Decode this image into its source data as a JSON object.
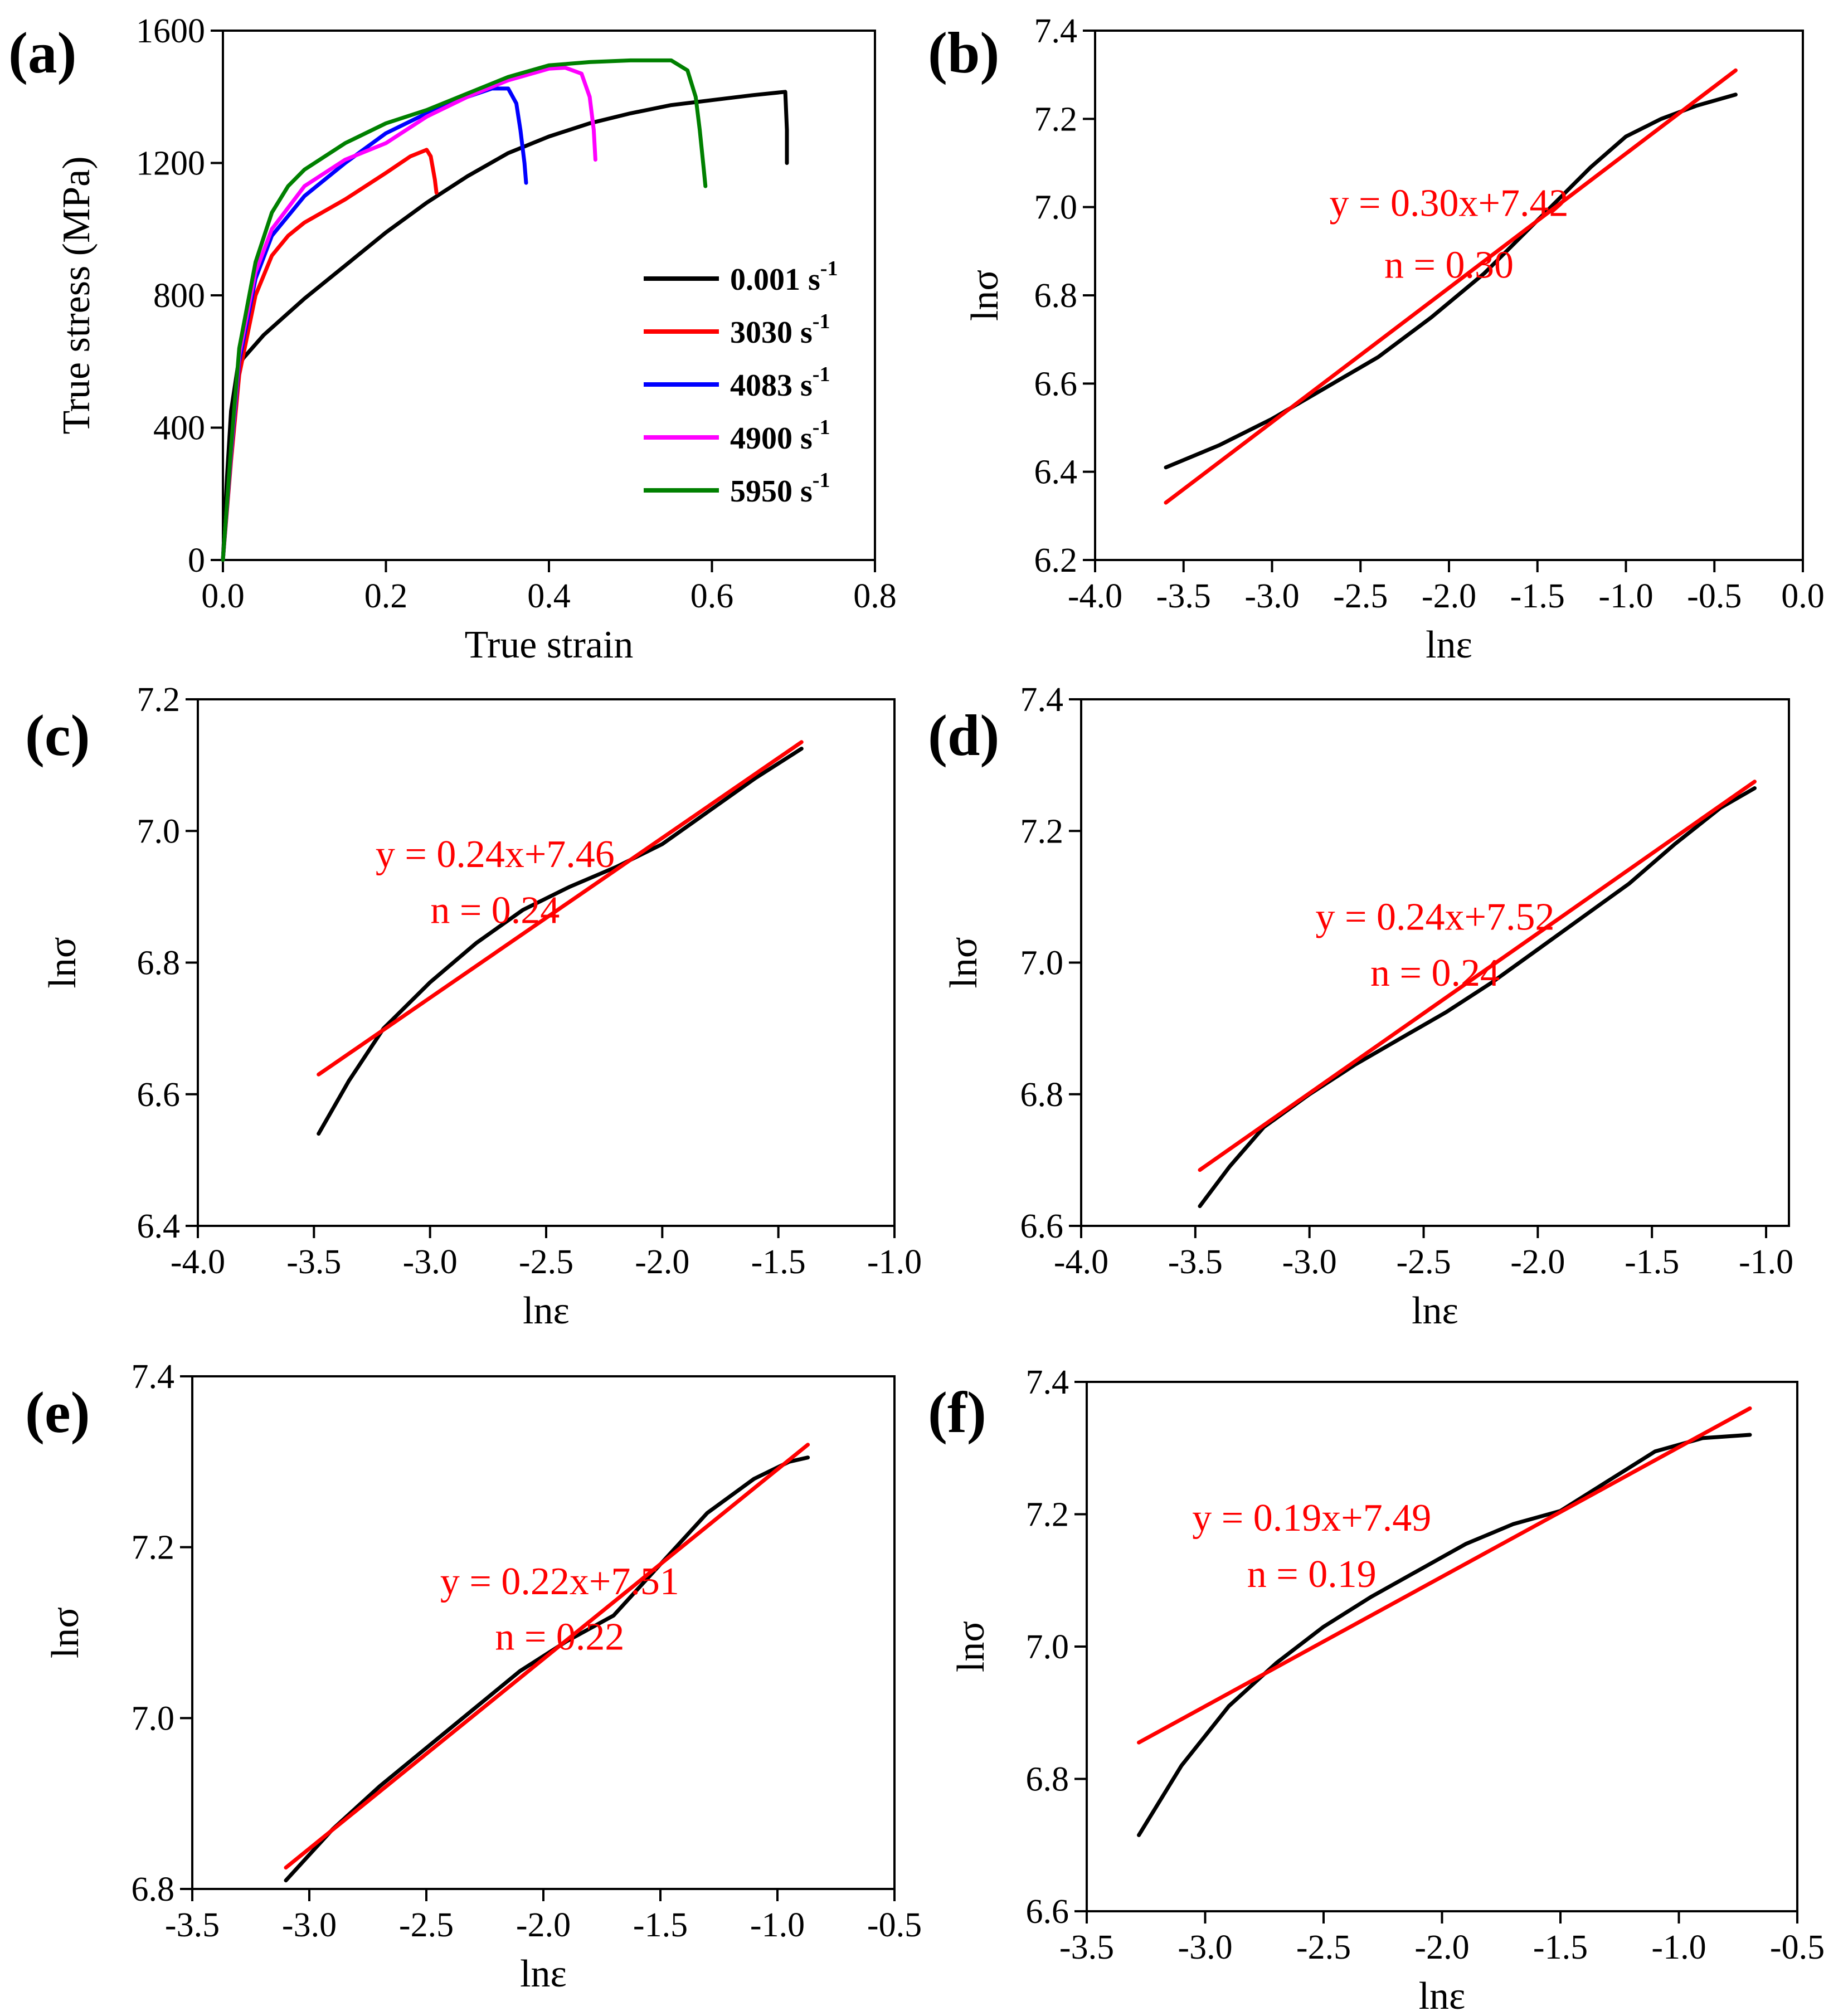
{
  "chart_data": [
    {
      "id": "a",
      "type": "line",
      "panel_label": "(a)",
      "xlabel": "True strain",
      "ylabel": "True stress (MPa)",
      "xlim": [
        0,
        0.8
      ],
      "ylim": [
        0,
        1600
      ],
      "xticks": [
        0.0,
        0.2,
        0.4,
        0.6,
        0.8
      ],
      "yticks": [
        0,
        400,
        800,
        1200,
        1600
      ],
      "xtick_labels": [
        "0.0",
        "0.2",
        "0.4",
        "0.6",
        "0.8"
      ],
      "ytick_labels": [
        "0",
        "400",
        "800",
        "1200",
        "1600"
      ],
      "legend_position": "middle-right",
      "series": [
        {
          "name": "0.001 s-1",
          "label": "0.001 s",
          "sup": "-1",
          "color": "#000000",
          "x": [
            0,
            0.005,
            0.01,
            0.018,
            0.025,
            0.05,
            0.1,
            0.15,
            0.2,
            0.25,
            0.3,
            0.35,
            0.4,
            0.45,
            0.5,
            0.55,
            0.6,
            0.65,
            0.69,
            0.692,
            0.692
          ],
          "y": [
            0,
            250,
            450,
            580,
            610,
            680,
            790,
            890,
            990,
            1080,
            1160,
            1230,
            1280,
            1320,
            1350,
            1375,
            1390,
            1405,
            1415,
            1300,
            1200
          ]
        },
        {
          "name": "3030 s-1",
          "label": "3030 s",
          "sup": "-1",
          "color": "#ff0000",
          "x": [
            0,
            0.01,
            0.02,
            0.04,
            0.06,
            0.08,
            0.1,
            0.15,
            0.2,
            0.23,
            0.25,
            0.255,
            0.26,
            0.262
          ],
          "y": [
            0,
            300,
            560,
            800,
            920,
            980,
            1020,
            1090,
            1170,
            1220,
            1240,
            1220,
            1150,
            1110
          ]
        },
        {
          "name": "4083 s-1",
          "label": "4083 s",
          "sup": "-1",
          "color": "#0000ff",
          "x": [
            0,
            0.01,
            0.02,
            0.04,
            0.06,
            0.1,
            0.15,
            0.2,
            0.25,
            0.3,
            0.33,
            0.35,
            0.36,
            0.365,
            0.37,
            0.372
          ],
          "y": [
            0,
            320,
            600,
            850,
            980,
            1100,
            1200,
            1290,
            1350,
            1400,
            1425,
            1425,
            1380,
            1300,
            1200,
            1140
          ]
        },
        {
          "name": "4900 s-1",
          "label": "4900 s",
          "sup": "-1",
          "color": "#ff00ff",
          "x": [
            0,
            0.01,
            0.02,
            0.04,
            0.06,
            0.1,
            0.15,
            0.2,
            0.25,
            0.3,
            0.35,
            0.4,
            0.42,
            0.44,
            0.45,
            0.455,
            0.457
          ],
          "y": [
            0,
            330,
            620,
            870,
            1000,
            1130,
            1210,
            1260,
            1340,
            1400,
            1450,
            1485,
            1488,
            1470,
            1400,
            1300,
            1210
          ]
        },
        {
          "name": "5950 s-1",
          "label": "5950 s",
          "sup": "-1",
          "color": "#008000",
          "x": [
            0,
            0.01,
            0.02,
            0.04,
            0.06,
            0.08,
            0.1,
            0.15,
            0.2,
            0.25,
            0.3,
            0.35,
            0.4,
            0.45,
            0.5,
            0.55,
            0.57,
            0.58,
            0.585,
            0.59,
            0.592
          ],
          "y": [
            0,
            340,
            640,
            900,
            1050,
            1130,
            1180,
            1260,
            1320,
            1360,
            1410,
            1460,
            1495,
            1505,
            1510,
            1510,
            1480,
            1400,
            1300,
            1180,
            1130
          ]
        }
      ]
    },
    {
      "id": "b",
      "type": "line",
      "panel_label": "(b)",
      "xlabel": "lnε",
      "ylabel": "lnσ",
      "xlim": [
        -4.0,
        0.0
      ],
      "ylim": [
        6.2,
        7.4
      ],
      "xticks": [
        -4.0,
        -3.5,
        -3.0,
        -2.5,
        -2.0,
        -1.5,
        -1.0,
        -0.5,
        0.0
      ],
      "yticks": [
        6.2,
        6.4,
        6.6,
        6.8,
        7.0,
        7.2,
        7.4
      ],
      "xtick_labels": [
        "-4.0",
        "-3.5",
        "-3.0",
        "-2.5",
        "-2.0",
        "-1.5",
        "-1.0",
        "-0.5",
        "0.0"
      ],
      "ytick_labels": [
        "6.2",
        "6.4",
        "6.6",
        "6.8",
        "7.0",
        "7.2",
        "7.4"
      ],
      "series": [
        {
          "name": "data",
          "color": "#000000",
          "x": [
            -3.6,
            -3.3,
            -3.0,
            -2.7,
            -2.4,
            -2.1,
            -1.8,
            -1.5,
            -1.2,
            -1.0,
            -0.8,
            -0.6,
            -0.38
          ],
          "y": [
            6.41,
            6.46,
            6.52,
            6.59,
            6.66,
            6.75,
            6.85,
            6.97,
            7.09,
            7.16,
            7.2,
            7.23,
            7.255
          ]
        },
        {
          "name": "fit",
          "color": "#ff0000",
          "x": [
            -3.6,
            -0.38
          ],
          "y": [
            6.33,
            7.31
          ]
        }
      ],
      "annotations": [
        "y = 0.30x+7.42",
        "n = 0.30"
      ],
      "annotation_pos": [
        [
          -2.0,
          6.98
        ],
        [
          -2.0,
          6.84
        ]
      ]
    },
    {
      "id": "c",
      "type": "line",
      "panel_label": "(c)",
      "xlabel": "lnε",
      "ylabel": "lnσ",
      "xlim": [
        -4.0,
        -1.0
      ],
      "ylim": [
        6.4,
        7.2
      ],
      "xticks": [
        -4.0,
        -3.5,
        -3.0,
        -2.5,
        -2.0,
        -1.5,
        -1.0
      ],
      "yticks": [
        6.4,
        6.6,
        6.8,
        7.0,
        7.2
      ],
      "xtick_labels": [
        "-4.0",
        "-3.5",
        "-3.0",
        "-2.5",
        "-2.0",
        "-1.5",
        "-1.0"
      ],
      "ytick_labels": [
        "6.4",
        "6.6",
        "6.8",
        "7.0",
        "7.2"
      ],
      "series": [
        {
          "name": "data",
          "color": "#000000",
          "x": [
            -3.48,
            -3.35,
            -3.2,
            -3.0,
            -2.8,
            -2.6,
            -2.4,
            -2.2,
            -2.0,
            -1.8,
            -1.6,
            -1.4
          ],
          "y": [
            6.54,
            6.62,
            6.7,
            6.77,
            6.83,
            6.88,
            6.915,
            6.945,
            6.98,
            7.03,
            7.08,
            7.125
          ]
        },
        {
          "name": "fit",
          "color": "#ff0000",
          "x": [
            -3.48,
            -1.4
          ],
          "y": [
            6.63,
            7.135
          ]
        }
      ],
      "annotations": [
        "y = 0.24x+7.46",
        "n = 0.24"
      ],
      "annotation_pos": [
        [
          -2.72,
          6.945
        ],
        [
          -2.72,
          6.86
        ]
      ]
    },
    {
      "id": "d",
      "type": "line",
      "panel_label": "(d)",
      "xlabel": "lnε",
      "ylabel": "lnσ",
      "xlim": [
        -4.0,
        -0.9
      ],
      "ylim": [
        6.6,
        7.4
      ],
      "xticks": [
        -4.0,
        -3.5,
        -3.0,
        -2.5,
        -2.0,
        -1.5,
        -1.0
      ],
      "yticks": [
        6.6,
        6.8,
        7.0,
        7.2,
        7.4
      ],
      "xtick_labels": [
        "-4.0",
        "-3.5",
        "-3.0",
        "-2.5",
        "-2.0",
        "-1.5",
        "-1.0"
      ],
      "ytick_labels": [
        "6.6",
        "6.8",
        "7.0",
        "7.2",
        "7.4"
      ],
      "series": [
        {
          "name": "data",
          "color": "#000000",
          "x": [
            -3.48,
            -3.35,
            -3.2,
            -3.0,
            -2.8,
            -2.6,
            -2.4,
            -2.2,
            -2.0,
            -1.8,
            -1.6,
            -1.4,
            -1.2,
            -1.05
          ],
          "y": [
            6.63,
            6.69,
            6.75,
            6.8,
            6.845,
            6.885,
            6.925,
            6.97,
            7.02,
            7.07,
            7.12,
            7.18,
            7.235,
            7.265
          ]
        },
        {
          "name": "fit",
          "color": "#ff0000",
          "x": [
            -3.48,
            -1.05
          ],
          "y": [
            6.685,
            7.275
          ]
        }
      ],
      "annotations": [
        "y = 0.24x+7.52",
        "n = 0.24"
      ],
      "annotation_pos": [
        [
          -2.45,
          7.05
        ],
        [
          -2.45,
          6.965
        ]
      ]
    },
    {
      "id": "e",
      "type": "line",
      "panel_label": "(e)",
      "xlabel": "lnε",
      "ylabel": "lnσ",
      "xlim": [
        -3.5,
        -0.5
      ],
      "ylim": [
        6.8,
        7.4
      ],
      "xticks": [
        -3.5,
        -3.0,
        -2.5,
        -2.0,
        -1.5,
        -1.0,
        -0.5
      ],
      "yticks": [
        6.8,
        7.0,
        7.2,
        7.4
      ],
      "xtick_labels": [
        "-3.5",
        "-3.0",
        "-2.5",
        "-2.0",
        "-1.5",
        "-1.0",
        "-0.5"
      ],
      "ytick_labels": [
        "6.8",
        "7.0",
        "7.2",
        "7.4"
      ],
      "series": [
        {
          "name": "data",
          "color": "#000000",
          "x": [
            -3.1,
            -2.9,
            -2.7,
            -2.5,
            -2.3,
            -2.1,
            -1.9,
            -1.7,
            -1.5,
            -1.3,
            -1.1,
            -0.95,
            -0.87
          ],
          "y": [
            6.81,
            6.87,
            6.92,
            6.965,
            7.01,
            7.055,
            7.09,
            7.12,
            7.18,
            7.24,
            7.28,
            7.3,
            7.305
          ]
        },
        {
          "name": "fit",
          "color": "#ff0000",
          "x": [
            -3.1,
            -0.87
          ],
          "y": [
            6.825,
            7.32
          ]
        }
      ],
      "annotations": [
        "y = 0.22x+7.51",
        "n = 0.22"
      ],
      "annotation_pos": [
        [
          -1.93,
          7.145
        ],
        [
          -1.93,
          7.08
        ]
      ]
    },
    {
      "id": "f",
      "type": "line",
      "panel_label": "(f)",
      "xlabel": "lnε",
      "ylabel": "lnσ",
      "xlim": [
        -3.5,
        -0.5
      ],
      "ylim": [
        6.6,
        7.4
      ],
      "xticks": [
        -3.5,
        -3.0,
        -2.5,
        -2.0,
        -1.5,
        -1.0,
        -0.5
      ],
      "yticks": [
        6.6,
        6.8,
        7.0,
        7.2,
        7.4
      ],
      "xtick_labels": [
        "-3.5",
        "-3.0",
        "-2.5",
        "-2.0",
        "-1.5",
        "-1.0",
        "-0.5"
      ],
      "ytick_labels": [
        "6.6",
        "6.8",
        "7.0",
        "7.2",
        "7.4"
      ],
      "series": [
        {
          "name": "data",
          "color": "#000000",
          "x": [
            -3.28,
            -3.1,
            -2.9,
            -2.7,
            -2.5,
            -2.3,
            -2.1,
            -1.9,
            -1.7,
            -1.5,
            -1.3,
            -1.1,
            -0.9,
            -0.7
          ],
          "y": [
            6.715,
            6.82,
            6.91,
            6.975,
            7.03,
            7.075,
            7.115,
            7.155,
            7.185,
            7.205,
            7.25,
            7.295,
            7.315,
            7.32
          ]
        },
        {
          "name": "fit",
          "color": "#ff0000",
          "x": [
            -3.28,
            -0.7
          ],
          "y": [
            6.855,
            7.36
          ]
        }
      ],
      "annotations": [
        "y = 0.19x+7.49",
        "n = 0.19"
      ],
      "annotation_pos": [
        [
          -2.55,
          7.175
        ],
        [
          -2.55,
          7.09
        ]
      ]
    }
  ]
}
